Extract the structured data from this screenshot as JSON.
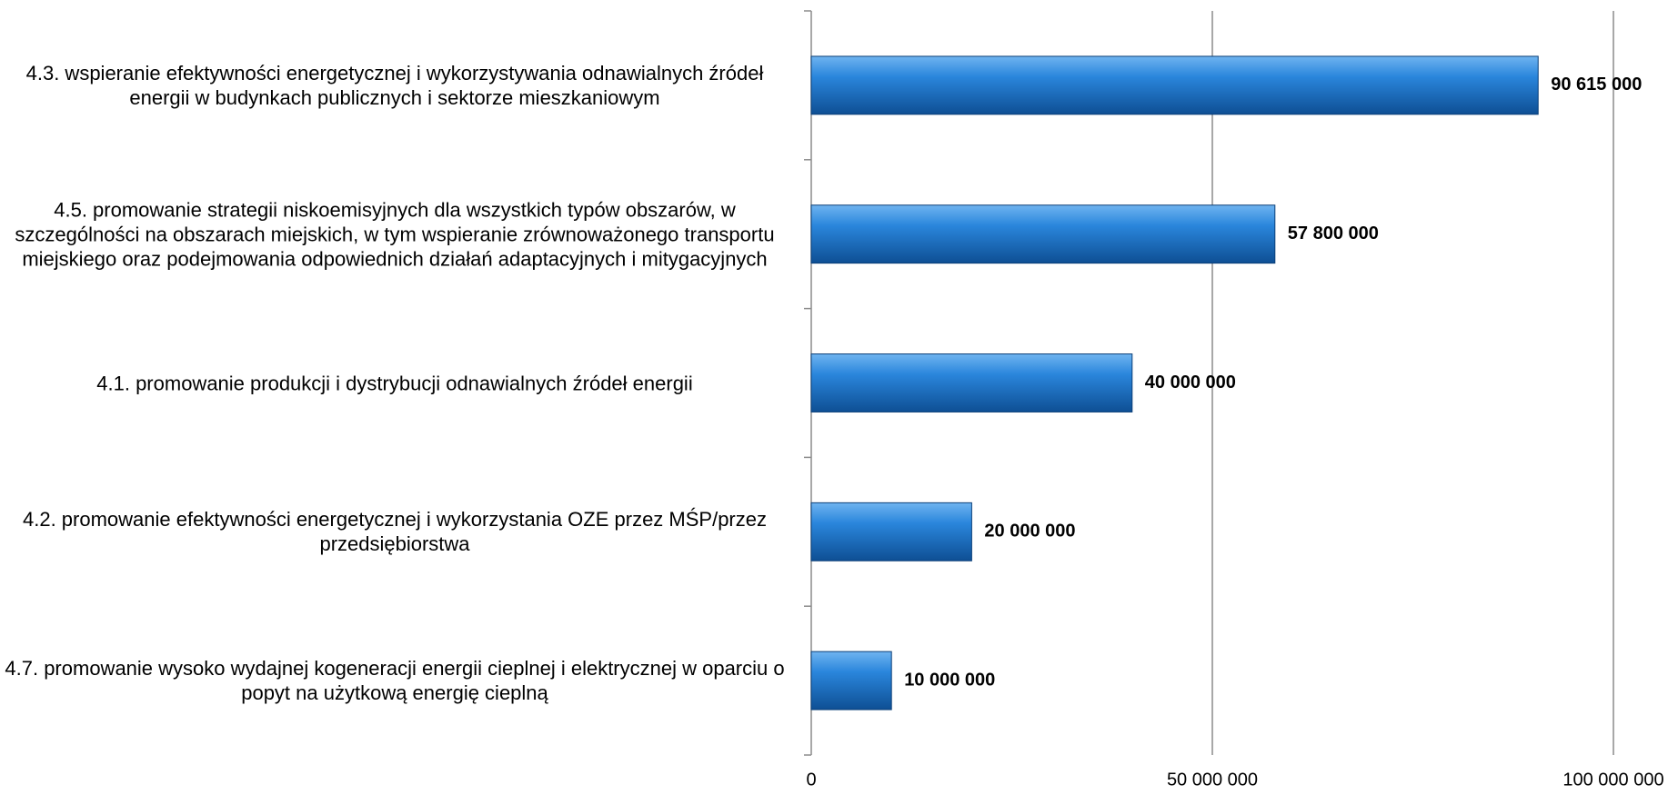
{
  "chart_data": {
    "type": "bar",
    "orientation": "horizontal",
    "categories": [
      "4.3. wspieranie efektywności energetycznej i wykorzystywania odnawialnych źródeł energii w budynkach publicznych i sektorze mieszkaniowym",
      "4.5. promowanie strategii niskoemisyjnych dla wszystkich typów obszarów, w szczególności na obszarach miejskich, w tym wspieranie zrównoważonego transportu miejskiego oraz podejmowania odpowiednich działań adaptacyjnych i mitygacyjnych",
      "4.1. promowanie produkcji i dystrybucji odnawialnych źródeł energii",
      "4.2. promowanie efektywności energetycznej i wykorzystania OZE przez MŚP/przez przedsiębiorstwa",
      "4.7. promowanie wysoko wydajnej kogeneracji energii cieplnej i elektrycznej w oparciu o popyt na użytkową energię cieplną"
    ],
    "values": [
      90615000,
      57800000,
      40000000,
      20000000,
      10000000
    ],
    "value_labels": [
      "90 615 000",
      "57 800 000",
      "40 000 000",
      "20 000 000",
      "10 000 000"
    ],
    "color": "#1a6fc4",
    "xlim": [
      0,
      100000000
    ],
    "xticks": [
      0,
      {
        "value": 50000000,
        "label": "50 000 000"
      },
      {
        "value": 100000000,
        "label": "100 000 000"
      }
    ],
    "grid": true
  }
}
